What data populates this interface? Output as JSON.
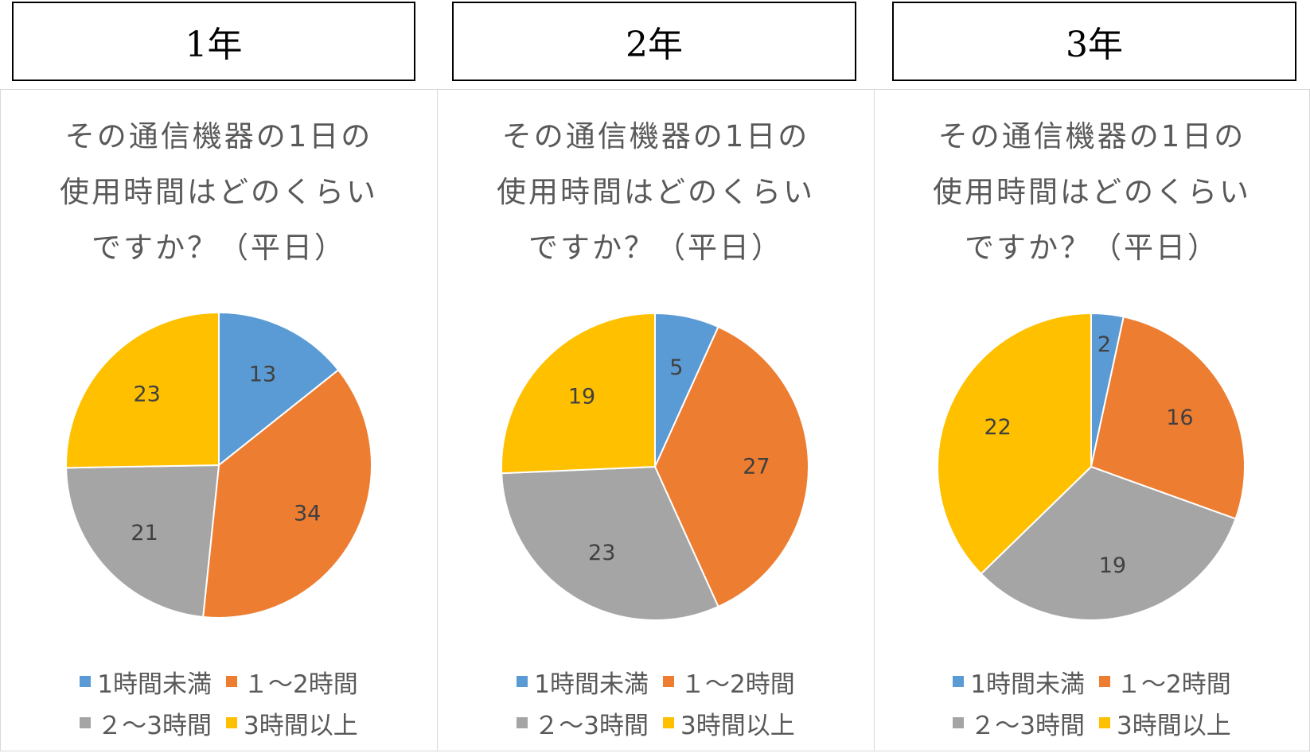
{
  "colors": {
    "cat0": "#5b9bd5",
    "cat1": "#ed7d31",
    "cat2": "#a5a5a5",
    "cat3": "#ffc000",
    "text": "#595959",
    "label": "#404040"
  },
  "grades": [
    "1年",
    "2年",
    "3年"
  ],
  "chart_data": [
    {
      "type": "pie",
      "title_lines": [
        "その通信機器の1日の",
        "使用時間はどのくらい",
        "ですか？（平日）"
      ],
      "categories": [
        "1時間未満",
        "１～2時間",
        "２～3時間",
        "3時間以上"
      ],
      "values": [
        13,
        34,
        21,
        23
      ],
      "legend": "bottom"
    },
    {
      "type": "pie",
      "title_lines": [
        "その通信機器の1日の",
        "使用時間はどのくらい",
        "ですか？（平日）"
      ],
      "categories": [
        "1時間未満",
        "１～2時間",
        "２～3時間",
        "3時間以上"
      ],
      "values": [
        5,
        27,
        23,
        19
      ],
      "legend": "bottom"
    },
    {
      "type": "pie",
      "title_lines": [
        "その通信機器の1日の",
        "使用時間はどのくらい",
        "ですか？（平日）"
      ],
      "categories": [
        "1時間未満",
        "１～2時間",
        "２～3時間",
        "3時間以上"
      ],
      "values": [
        2,
        16,
        19,
        22
      ],
      "legend": "bottom"
    }
  ]
}
